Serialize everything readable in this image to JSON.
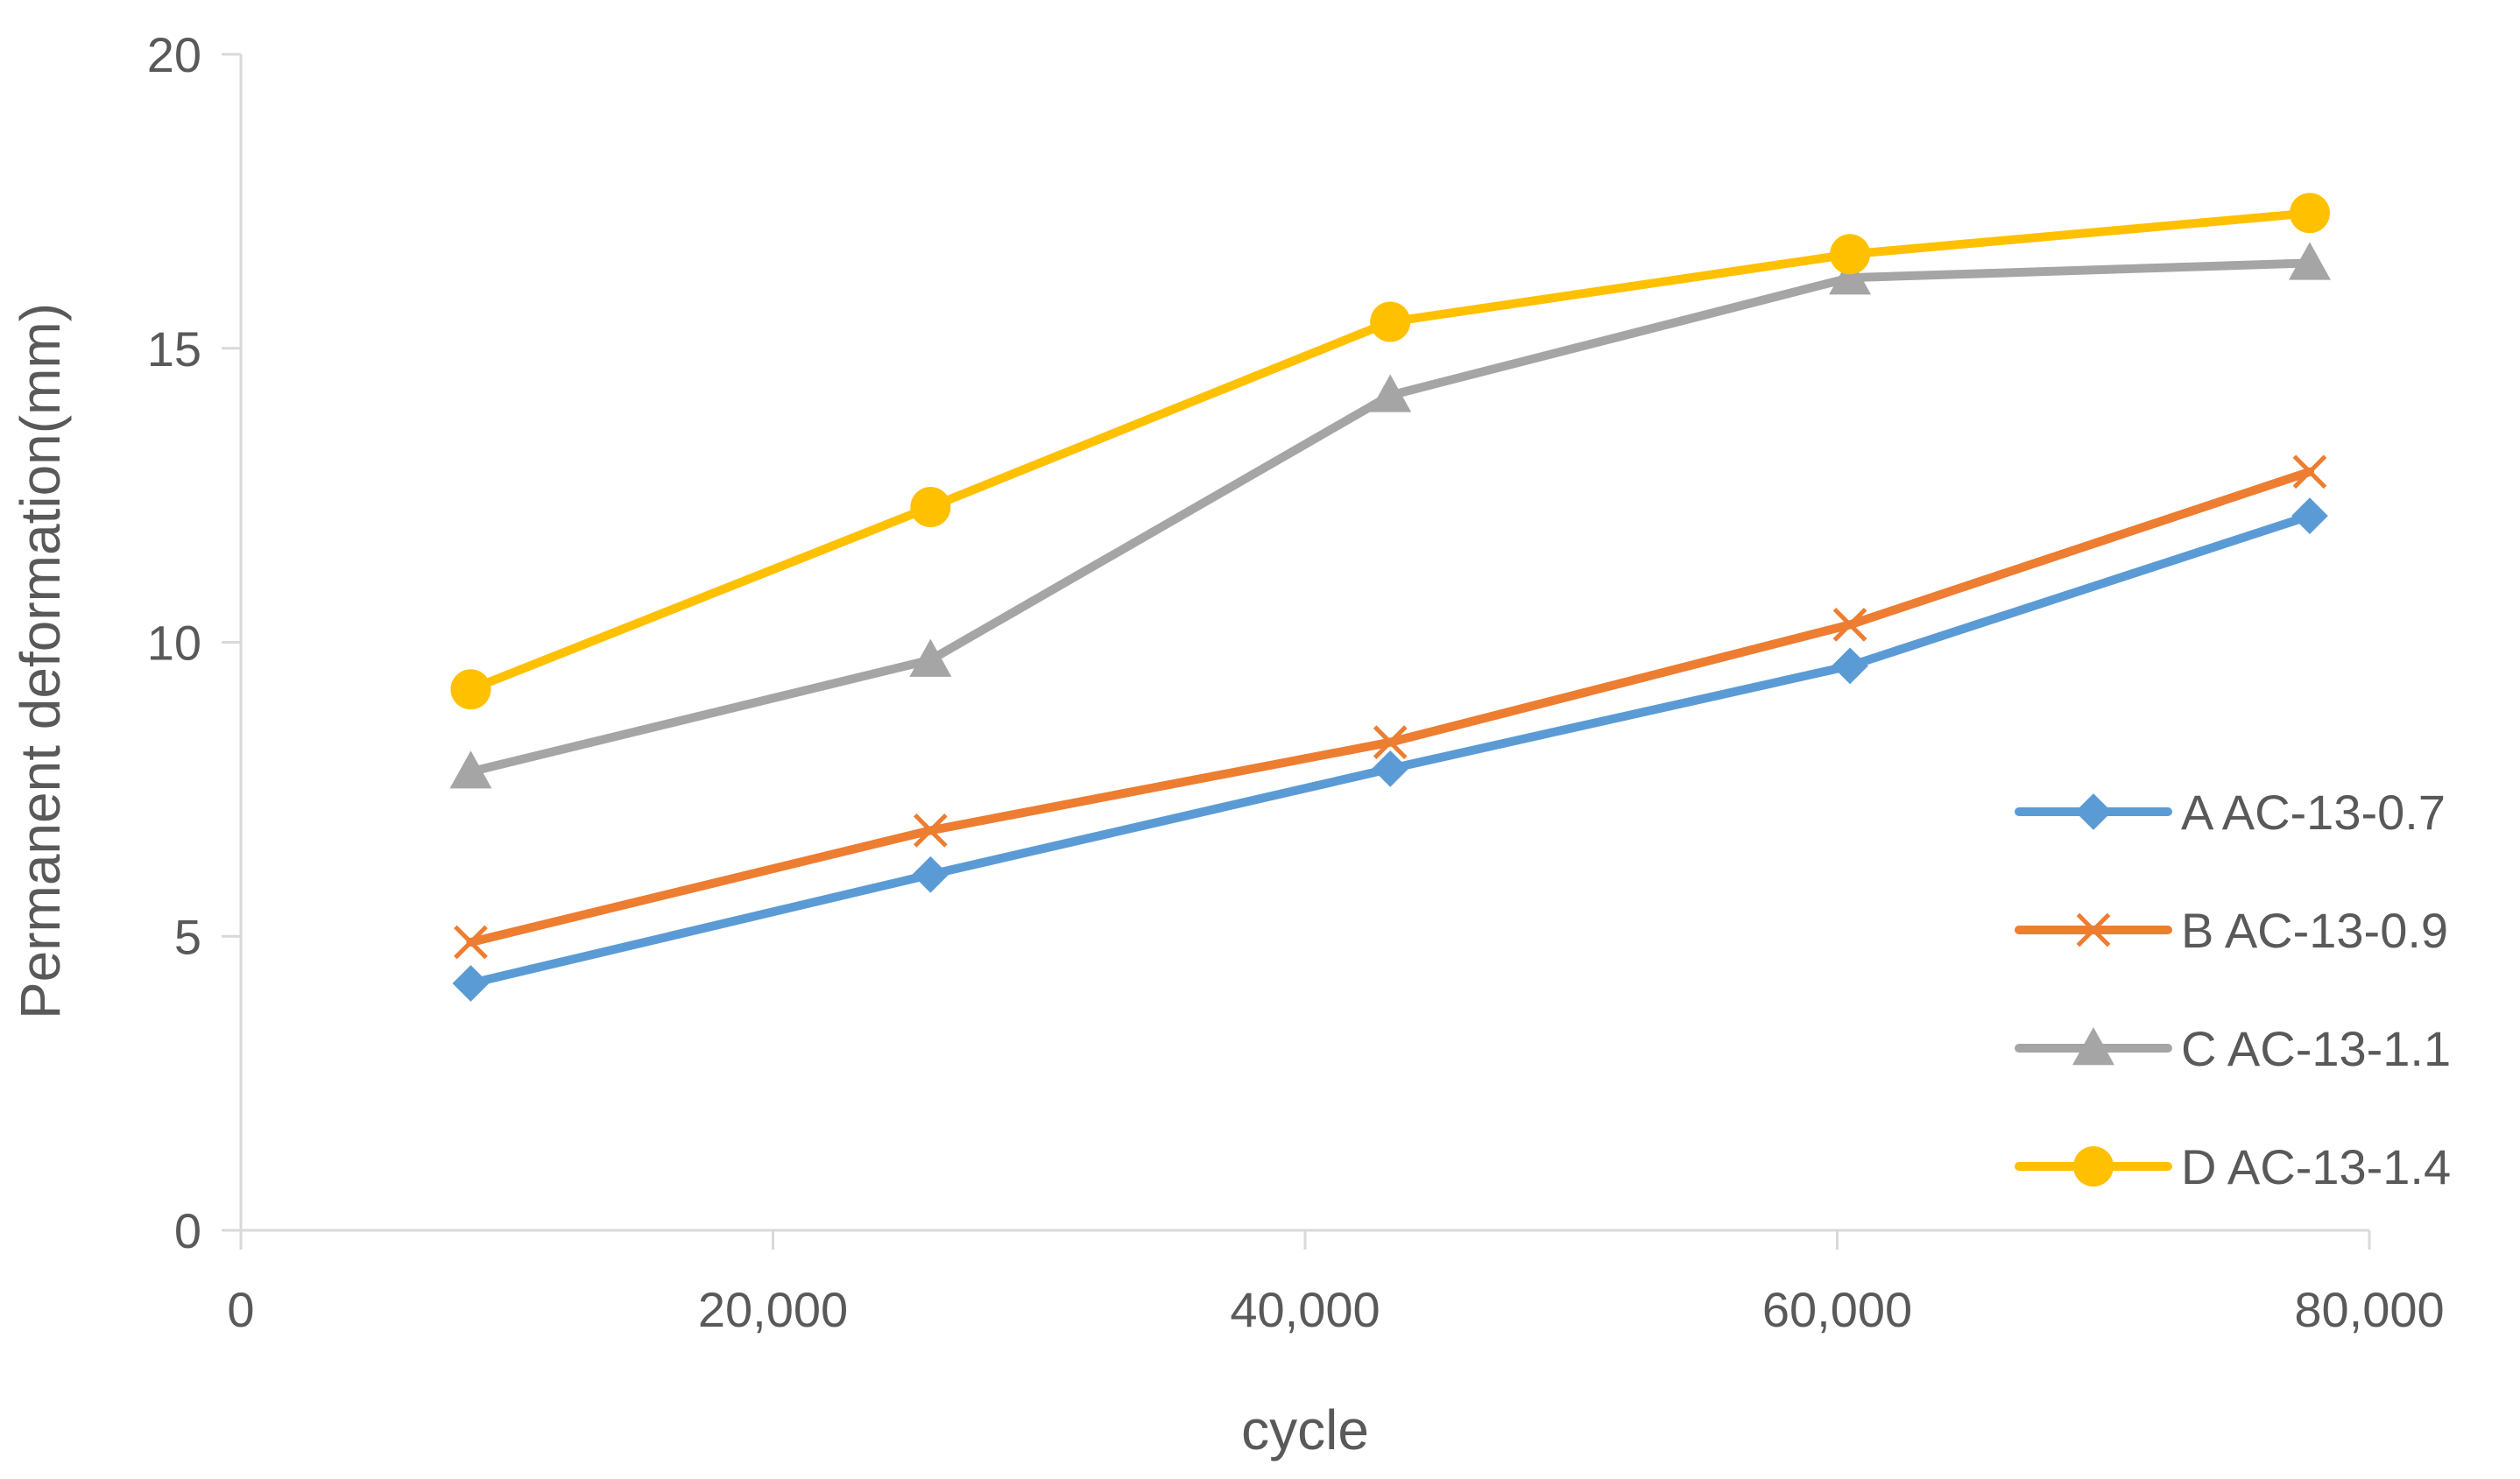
{
  "chart_data": {
    "type": "line",
    "title": "",
    "xlabel": "cycle",
    "ylabel": "Permanent deformation(mm)",
    "xlim": [
      0,
      80000
    ],
    "ylim": [
      0,
      20
    ],
    "x_ticks": [
      0,
      20000,
      40000,
      60000,
      80000
    ],
    "x_tick_labels": [
      "0",
      "20,000",
      "40,000",
      "60,000",
      "80,000"
    ],
    "y_ticks": [
      0,
      5,
      10,
      15,
      20
    ],
    "y_tick_labels": [
      "0",
      "5",
      "10",
      "15",
      "20"
    ],
    "grid": false,
    "legend_position": "right",
    "x": [
      8640,
      25920,
      43200,
      60480,
      77760
    ],
    "series": [
      {
        "name": "A AC-13-0.7",
        "marker": "diamond",
        "color": "#5B9BD5",
        "values": [
          4.2,
          6.05,
          7.85,
          9.6,
          12.15
        ]
      },
      {
        "name": "B AC-13-0.9",
        "marker": "x",
        "color": "#ED7D31",
        "values": [
          4.9,
          6.8,
          8.3,
          10.3,
          12.9
        ]
      },
      {
        "name": "C AC-13-1.1",
        "marker": "triangle",
        "color": "#A5A5A5",
        "values": [
          7.8,
          9.7,
          14.2,
          16.2,
          16.45
        ]
      },
      {
        "name": "D AC-13-1.4",
        "marker": "circle",
        "color": "#FFC000",
        "values": [
          9.2,
          12.3,
          15.45,
          16.6,
          17.3
        ]
      }
    ]
  }
}
